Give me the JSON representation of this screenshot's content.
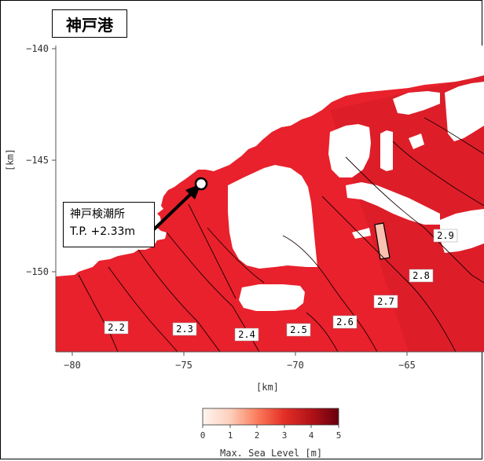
{
  "map": {
    "title": "神戸港",
    "callout": {
      "line1": "神戸検潮所",
      "line2": "T.P. +2.33m"
    },
    "axes": {
      "x_ticks": [
        "−80",
        "−75",
        "−70",
        "−65"
      ],
      "y_ticks": [
        "−140",
        "−145",
        "−150"
      ],
      "x_label": "[km]",
      "y_label": "[km]"
    },
    "contour_labels": [
      "2.2",
      "2.3",
      "2.4",
      "2.5",
      "2.6",
      "2.7",
      "2.8",
      "2.9"
    ],
    "colorbar": {
      "ticks": [
        "0",
        "1",
        "2",
        "3",
        "4",
        "5"
      ],
      "label": "Max. Sea Level [m]",
      "colors": [
        "#fff5f0",
        "#fcbba1",
        "#fb6a4a",
        "#e0202a",
        "#a50f15",
        "#67000d"
      ]
    },
    "sea_color": "#e8212c",
    "land_color": "#ffffff"
  }
}
